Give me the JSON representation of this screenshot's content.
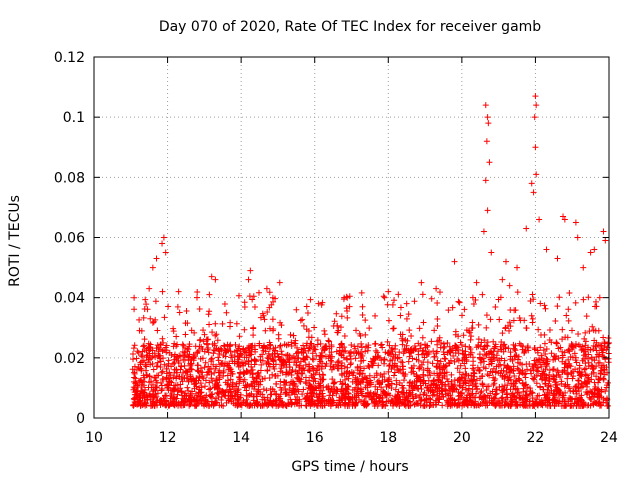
{
  "chart_data": {
    "type": "scatter",
    "title": "Day 070 of 2020, Rate Of TEC Index for receiver gamb",
    "xlabel": "GPS time / hours",
    "ylabel": "ROTI / TECUs",
    "xlim": [
      10,
      24
    ],
    "ylim": [
      0,
      0.12
    ],
    "xticks": [
      10,
      12,
      14,
      16,
      18,
      20,
      22,
      24
    ],
    "xtick_labels": [
      "10",
      "12",
      "14",
      "16",
      "18",
      "20",
      "22",
      "24"
    ],
    "yticks": [
      0,
      0.02,
      0.04,
      0.06,
      0.08,
      0.1,
      0.12
    ],
    "ytick_labels": [
      "0",
      "0.02",
      "0.04",
      "0.06",
      "0.08",
      "0.1",
      "0.12"
    ],
    "grid": true,
    "marker": "+",
    "colors": {
      "series": "#ff0000",
      "grid": "#a0a0a0",
      "axes": "#000000"
    },
    "series": [
      {
        "name": "ROTI",
        "x_range": [
          11.05,
          24.0
        ],
        "baseline_range": [
          0.004,
          0.03
        ],
        "notable_points": [
          {
            "x": 11.9,
            "y": 0.06
          },
          {
            "x": 11.85,
            "y": 0.058
          },
          {
            "x": 11.7,
            "y": 0.053
          },
          {
            "x": 11.5,
            "y": 0.043
          },
          {
            "x": 11.6,
            "y": 0.05
          },
          {
            "x": 11.95,
            "y": 0.055
          },
          {
            "x": 12.3,
            "y": 0.042
          },
          {
            "x": 12.8,
            "y": 0.04
          },
          {
            "x": 13.2,
            "y": 0.047
          },
          {
            "x": 13.3,
            "y": 0.046
          },
          {
            "x": 13.6,
            "y": 0.035
          },
          {
            "x": 14.25,
            "y": 0.049
          },
          {
            "x": 14.2,
            "y": 0.046
          },
          {
            "x": 14.7,
            "y": 0.043
          },
          {
            "x": 15.05,
            "y": 0.045
          },
          {
            "x": 15.5,
            "y": 0.036
          },
          {
            "x": 16.1,
            "y": 0.038
          },
          {
            "x": 16.8,
            "y": 0.04
          },
          {
            "x": 17.3,
            "y": 0.037
          },
          {
            "x": 17.9,
            "y": 0.04
          },
          {
            "x": 18.0,
            "y": 0.042
          },
          {
            "x": 18.5,
            "y": 0.038
          },
          {
            "x": 18.9,
            "y": 0.045
          },
          {
            "x": 19.3,
            "y": 0.043
          },
          {
            "x": 19.8,
            "y": 0.052
          },
          {
            "x": 20.3,
            "y": 0.04
          },
          {
            "x": 20.4,
            "y": 0.045
          },
          {
            "x": 20.65,
            "y": 0.104
          },
          {
            "x": 20.7,
            "y": 0.1
          },
          {
            "x": 20.72,
            "y": 0.098
          },
          {
            "x": 20.68,
            "y": 0.092
          },
          {
            "x": 20.75,
            "y": 0.085
          },
          {
            "x": 20.65,
            "y": 0.079
          },
          {
            "x": 20.7,
            "y": 0.069
          },
          {
            "x": 20.6,
            "y": 0.062
          },
          {
            "x": 20.8,
            "y": 0.055
          },
          {
            "x": 21.1,
            "y": 0.046
          },
          {
            "x": 21.2,
            "y": 0.052
          },
          {
            "x": 21.3,
            "y": 0.044
          },
          {
            "x": 21.5,
            "y": 0.05
          },
          {
            "x": 21.75,
            "y": 0.063
          },
          {
            "x": 21.9,
            "y": 0.078
          },
          {
            "x": 22.0,
            "y": 0.107
          },
          {
            "x": 22.02,
            "y": 0.104
          },
          {
            "x": 21.98,
            "y": 0.1
          },
          {
            "x": 22.0,
            "y": 0.09
          },
          {
            "x": 22.02,
            "y": 0.081
          },
          {
            "x": 21.95,
            "y": 0.075
          },
          {
            "x": 22.1,
            "y": 0.066
          },
          {
            "x": 22.3,
            "y": 0.056
          },
          {
            "x": 22.6,
            "y": 0.053
          },
          {
            "x": 22.75,
            "y": 0.067
          },
          {
            "x": 22.8,
            "y": 0.066
          },
          {
            "x": 23.1,
            "y": 0.065
          },
          {
            "x": 23.15,
            "y": 0.06
          },
          {
            "x": 23.3,
            "y": 0.05
          },
          {
            "x": 23.5,
            "y": 0.055
          },
          {
            "x": 23.6,
            "y": 0.056
          },
          {
            "x": 23.85,
            "y": 0.062
          },
          {
            "x": 23.9,
            "y": 0.059
          },
          {
            "x": 23.75,
            "y": 0.04
          }
        ]
      }
    ]
  }
}
